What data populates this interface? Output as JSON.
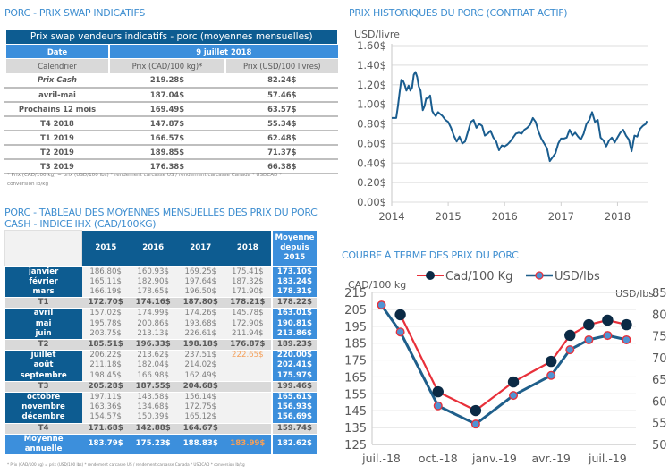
{
  "swap_section": {
    "title": "PORC - PRIX SWAP INDICATIFS",
    "table_title": "Prix swap vendeurs indicatifs - porc (moyennes mensuelles)",
    "date_label": "Date",
    "date_value": "9 juillet 2018",
    "headers": [
      "Calendrier",
      "Prix (CAD/100 kg)*",
      "Prix (USD/100 livres)"
    ],
    "rows": [
      {
        "period": "Prix Cash",
        "cad": "219.28$",
        "usd": "82.24$"
      },
      {
        "period": "avril-mai",
        "cad": "187.04$",
        "usd": "57.46$"
      },
      {
        "period": "Prochains 12 mois",
        "cad": "169.49$",
        "usd": "63.57$"
      },
      {
        "period": "T4 2018",
        "cad": "147.87$",
        "usd": "55.34$"
      },
      {
        "period": "T1 2019",
        "cad": "166.57$",
        "usd": "62.48$"
      },
      {
        "period": "T2 2019",
        "cad": "189.85$",
        "usd": "71.37$"
      },
      {
        "period": "T3 2019",
        "cad": "176.38$",
        "usd": "66.38$"
      }
    ],
    "footnote_line1": "* Prix (CAD/100 kg) = prix (USD/100 lbs) * rendement carcasse US / rendement carcasse Canada * USDCAD *",
    "footnote_line2": "conversion lb/kg"
  },
  "monthly_section": {
    "title_line1": "PORC - TABLEAU DES MOYENNES MENSUELLES DES PRIX DU PORC",
    "title_line2": "CASH - INDICE IHX (CAD/100KG)",
    "years": [
      "2015",
      "2016",
      "2017",
      "2018"
    ],
    "avg_header": [
      "Moyenne",
      "depuis",
      "2015"
    ],
    "rows": [
      {
        "label": "janvier",
        "type": "month",
        "values": [
          "186.80$",
          "160.93$",
          "169.25$",
          "175.41$"
        ],
        "avg": "173.10$",
        "group_first": true
      },
      {
        "label": "février",
        "type": "month",
        "values": [
          "165.11$",
          "182.90$",
          "197.64$",
          "187.32$"
        ],
        "avg": "183.24$"
      },
      {
        "label": "mars",
        "type": "month",
        "values": [
          "166.19$",
          "178.65$",
          "196.50$",
          "171.90$"
        ],
        "avg": "178.31$"
      },
      {
        "label": "T1",
        "type": "quarter",
        "values": [
          "172.70$",
          "174.16$",
          "187.80$",
          "178.21$"
        ],
        "avg": "178.22$"
      },
      {
        "label": "avril",
        "type": "month",
        "values": [
          "157.02$",
          "174.99$",
          "174.26$",
          "145.78$"
        ],
        "avg": "163.01$"
      },
      {
        "label": "mai",
        "type": "month",
        "values": [
          "195.78$",
          "200.86$",
          "193.68$",
          "172.90$"
        ],
        "avg": "190.81$"
      },
      {
        "label": "juin",
        "type": "month",
        "values": [
          "203.75$",
          "213.13$",
          "226.61$",
          "211.94$"
        ],
        "avg": "213.86$"
      },
      {
        "label": "T2",
        "type": "quarter",
        "values": [
          "185.51$",
          "196.33$",
          "198.18$",
          "176.87$"
        ],
        "avg": "189.23$"
      },
      {
        "label": "juillet",
        "type": "month",
        "values": [
          "206.22$",
          "213.62$",
          "237.51$",
          "222.65$"
        ],
        "avg": "220.00$",
        "highlight_col": 3
      },
      {
        "label": "août",
        "type": "month",
        "values": [
          "211.18$",
          "182.04$",
          "214.02$",
          ""
        ],
        "avg": "202.41$"
      },
      {
        "label": "septembre",
        "type": "month",
        "values": [
          "198.45$",
          "166.98$",
          "162.49$",
          ""
        ],
        "avg": "175.97$"
      },
      {
        "label": "T3",
        "type": "quarter",
        "values": [
          "205.28$",
          "187.55$",
          "204.68$",
          ""
        ],
        "avg": "199.46$"
      },
      {
        "label": "octobre",
        "type": "month",
        "values": [
          "197.11$",
          "143.58$",
          "156.14$",
          ""
        ],
        "avg": "165.61$"
      },
      {
        "label": "novembre",
        "type": "month",
        "values": [
          "163.36$",
          "134.68$",
          "172.75$",
          ""
        ],
        "avg": "156.93$"
      },
      {
        "label": "décembre",
        "type": "month",
        "values": [
          "154.57$",
          "150.39$",
          "165.12$",
          ""
        ],
        "avg": "156.69$"
      },
      {
        "label": "T4",
        "type": "quarter",
        "values": [
          "171.68$",
          "142.88$",
          "164.67$",
          ""
        ],
        "avg": "159.74$"
      },
      {
        "label": "Moyenne annuelle",
        "type": "year",
        "values": [
          "183.79$",
          "175.23$",
          "188.83$",
          "183.99$"
        ],
        "avg": "182.62$",
        "highlight_col": 3
      }
    ],
    "footnote": "* Prix (CAD/100 kg) = prix (USD/100 lbs) * rendement carcasse US / rendement carcasse Canada * USDCAD * conversion lb/kg"
  },
  "colors": {
    "dark_blue": "#0d5c91",
    "mid_blue": "#3c8fdc",
    "title_blue": "#3e8ed0",
    "grey": "#d9d9d9",
    "highlight_orange": "#f4a05a",
    "line_blue": "#1f5f8b",
    "line_red": "#e8303a"
  },
  "chart_data": [
    {
      "type": "line",
      "title": "PRIX HISTORIQUES DU PORC (CONTRAT ACTIF)",
      "ylabel": "USD/livre",
      "xlabel": "",
      "ylim": [
        0,
        1.6
      ],
      "yticks": [
        "0.00$",
        "0.20$",
        "0.40$",
        "0.60$",
        "0.80$",
        "1.00$",
        "1.20$",
        "1.40$",
        "1.60$"
      ],
      "ytick_values": [
        0,
        0.2,
        0.4,
        0.6,
        0.8,
        1.0,
        1.2,
        1.4,
        1.6
      ],
      "xlim": [
        2014,
        2018.5
      ],
      "xticks": [
        "2014",
        "2015",
        "2016",
        "2017",
        "2018"
      ],
      "xtick_values": [
        2014,
        2015,
        2016,
        2017,
        2018
      ],
      "grid": true,
      "legend": "none",
      "series": [
        {
          "name": "Contrat actif",
          "x": [
            2014.0,
            2014.04,
            2014.08,
            2014.11,
            2014.14,
            2014.17,
            2014.2,
            2014.23,
            2014.26,
            2014.3,
            2014.33,
            2014.36,
            2014.39,
            2014.42,
            2014.45,
            2014.48,
            2014.51,
            2014.55,
            2014.58,
            2014.61,
            2014.64,
            2014.68,
            2014.72,
            2014.75,
            2014.78,
            2014.82,
            2014.86,
            2014.9,
            2014.95,
            2015.0,
            2015.05,
            2015.1,
            2015.15,
            2015.2,
            2015.25,
            2015.3,
            2015.35,
            2015.4,
            2015.45,
            2015.5,
            2015.55,
            2015.6,
            2015.65,
            2015.7,
            2015.75,
            2015.8,
            2015.85,
            2015.9,
            2015.95,
            2016.0,
            2016.05,
            2016.1,
            2016.15,
            2016.2,
            2016.25,
            2016.3,
            2016.35,
            2016.4,
            2016.45,
            2016.5,
            2016.55,
            2016.6,
            2016.65,
            2016.7,
            2016.75,
            2016.8,
            2016.85,
            2016.9,
            2016.95,
            2017.0,
            2017.05,
            2017.1,
            2017.15,
            2017.2,
            2017.25,
            2017.3,
            2017.35,
            2017.4,
            2017.45,
            2017.5,
            2017.55,
            2017.6,
            2017.65,
            2017.7,
            2017.75,
            2017.8,
            2017.85,
            2017.9,
            2017.95,
            2018.0,
            2018.05,
            2018.1,
            2018.15,
            2018.2,
            2018.25,
            2018.3,
            2018.35,
            2018.4,
            2018.45,
            2018.5,
            2018.52
          ],
          "y": [
            0.86,
            0.86,
            0.86,
            0.98,
            1.12,
            1.25,
            1.24,
            1.2,
            1.14,
            1.19,
            1.14,
            1.17,
            1.3,
            1.33,
            1.28,
            1.18,
            1.14,
            0.94,
            0.98,
            1.06,
            1.06,
            1.09,
            0.93,
            0.9,
            0.88,
            0.92,
            0.9,
            0.88,
            0.84,
            0.82,
            0.76,
            0.68,
            0.62,
            0.67,
            0.6,
            0.62,
            0.72,
            0.82,
            0.84,
            0.76,
            0.8,
            0.78,
            0.68,
            0.7,
            0.73,
            0.66,
            0.62,
            0.53,
            0.58,
            0.57,
            0.59,
            0.62,
            0.66,
            0.7,
            0.71,
            0.7,
            0.74,
            0.76,
            0.79,
            0.86,
            0.82,
            0.72,
            0.65,
            0.6,
            0.55,
            0.42,
            0.46,
            0.5,
            0.6,
            0.65,
            0.65,
            0.66,
            0.74,
            0.68,
            0.71,
            0.67,
            0.64,
            0.7,
            0.8,
            0.84,
            0.92,
            0.82,
            0.84,
            0.66,
            0.63,
            0.57,
            0.63,
            0.66,
            0.61,
            0.66,
            0.71,
            0.74,
            0.68,
            0.64,
            0.52,
            0.68,
            0.67,
            0.75,
            0.78,
            0.8,
            0.83
          ]
        }
      ]
    },
    {
      "type": "line",
      "title": "COURBE À TERME DES PRIX DU PORC",
      "ylabel": "CAD/100 kg",
      "y2label": "USD/lbs",
      "ylim": [
        125,
        215
      ],
      "yticks": [
        "125",
        "135",
        "145",
        "155",
        "165",
        "175",
        "185",
        "195",
        "205",
        "215"
      ],
      "y2lim": [
        50,
        85
      ],
      "y2ticks": [
        "50",
        "55",
        "60",
        "65",
        "70",
        "75",
        "80",
        "85"
      ],
      "xticks": [
        "juil.-18",
        "oct.-18",
        "janv.-19",
        "avr.-19",
        "juil.-19"
      ],
      "xtick_months": [
        0,
        3,
        6,
        9,
        12
      ],
      "xlim_months": [
        -0.5,
        13.5
      ],
      "grid": true,
      "legend": "top",
      "series": [
        {
          "name": "Cad/100 Kg",
          "axis": "left",
          "line_color": "#e8303a",
          "marker_color": "#0b2a45",
          "months": [
            1,
            3,
            5,
            7,
            9,
            10,
            11,
            12,
            13
          ],
          "values": [
            201.8,
            156.2,
            145.1,
            162.0,
            174.2,
            189.6,
            195.9,
            198.6,
            195.9
          ]
        },
        {
          "name": "USD/lbs",
          "axis": "right",
          "line_color": "#1f5f8b",
          "marker_color": "#4f94d4",
          "marker_edge": "#e8303a",
          "months": [
            0,
            1,
            3,
            5,
            7,
            9,
            10,
            11,
            12,
            13
          ],
          "values": [
            82.1,
            75.9,
            58.9,
            54.7,
            61.3,
            65.9,
            71.8,
            74.1,
            75.1,
            74.1
          ]
        }
      ]
    }
  ]
}
